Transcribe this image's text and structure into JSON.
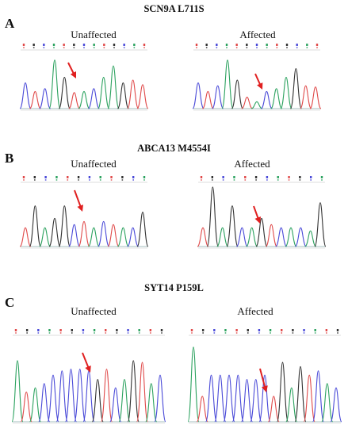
{
  "figure": {
    "panels": [
      {
        "letter": "A",
        "title": "SCN9A L711S",
        "left_label": "Unaffected",
        "right_label": "Affected"
      },
      {
        "letter": "B",
        "title": "ABCA13 M4554I",
        "left_label": "Unaffected",
        "right_label": "Affected"
      },
      {
        "letter": "C",
        "title": "SYT14 P159L",
        "left_label": "Unaffected",
        "right_label": "Affected"
      }
    ],
    "colors": {
      "A": "#2ca25f",
      "C": "#4a4ad8",
      "G": "#333333",
      "T": "#e04a4a",
      "arrow": "#e02020"
    }
  }
}
